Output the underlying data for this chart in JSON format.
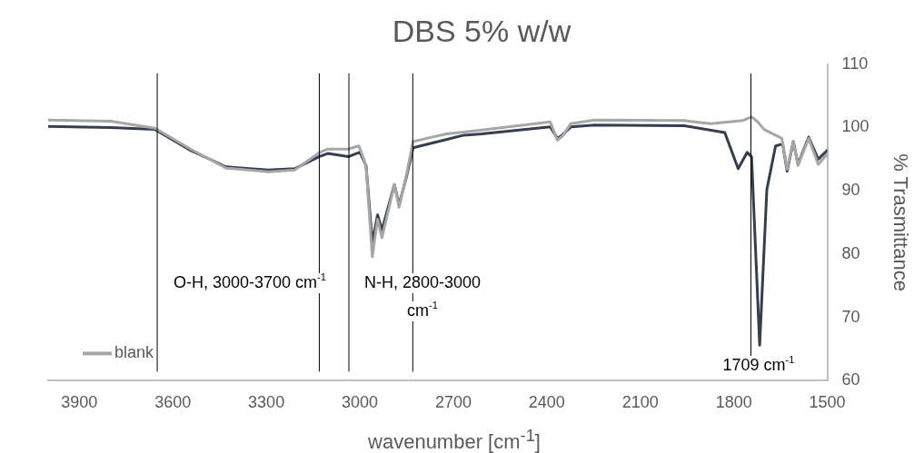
{
  "chart_data": {
    "type": "line",
    "title": "DBS 5% w/w",
    "xlabel": "wavenumber [cm$^{-1}$]",
    "ylabel": "% Trasmittance",
    "xlim": [
      4000,
      1500
    ],
    "xticks": [
      3900,
      3600,
      3300,
      3000,
      2700,
      2400,
      2100,
      1800,
      1500
    ],
    "ylim": [
      60,
      110
    ],
    "yticks": [
      60,
      70,
      80,
      90,
      100,
      110
    ],
    "grid": false,
    "legend": "bottom left",
    "marker": "none",
    "line_style": "solid",
    "series": [
      {
        "name": "blank",
        "color": "#a6a6a6",
        "x": [
          4000,
          3800,
          3657,
          3543,
          3429,
          3294,
          3209,
          3131,
          3103,
          3037,
          3003,
          2980,
          2960,
          2943,
          2929,
          2889,
          2874,
          2851,
          2829,
          2723,
          2609,
          2389,
          2366,
          2351,
          2323,
          2246,
          1960,
          1874,
          1771,
          1743,
          1723,
          1703,
          1646,
          1629,
          1609,
          1594,
          1560,
          1529,
          1500
        ],
        "values": [
          101.2,
          101.0,
          99.9,
          96.6,
          93.6,
          93.0,
          93.3,
          96.0,
          96.6,
          96.6,
          97.1,
          94.0,
          79.6,
          85.5,
          82.6,
          91.0,
          87.4,
          92.4,
          97.8,
          99.0,
          99.6,
          100.9,
          98.0,
          98.6,
          100.6,
          101.2,
          101.1,
          100.6,
          101.1,
          101.7,
          100.9,
          99.7,
          98.3,
          93.4,
          97.8,
          94.0,
          98.3,
          94.2,
          95.8
        ]
      },
      {
        "color": "#333f50",
        "x": [
          4000,
          3800,
          3657,
          3543,
          3429,
          3294,
          3209,
          3131,
          3103,
          3037,
          3000,
          2980,
          2960,
          2943,
          2929,
          2889,
          2874,
          2851,
          2829,
          2723,
          2666,
          2609,
          2389,
          2366,
          2351,
          2323,
          2246,
          1960,
          1829,
          1786,
          1757,
          1743,
          1717,
          1694,
          1666,
          1643,
          1629,
          1609,
          1594,
          1560,
          1529,
          1500
        ],
        "values": [
          100.2,
          100.0,
          99.7,
          96.4,
          93.8,
          93.3,
          93.5,
          95.4,
          95.9,
          95.4,
          96.1,
          94.0,
          81.9,
          86.2,
          83.8,
          91.0,
          87.8,
          92.1,
          96.8,
          98.1,
          98.8,
          99.0,
          100.1,
          98.3,
          98.8,
          100.1,
          100.4,
          100.3,
          99.2,
          93.5,
          96.1,
          95.4,
          65.6,
          90.2,
          97.1,
          97.4,
          93.1,
          97.8,
          94.2,
          98.5,
          95.0,
          96.4
        ]
      }
    ],
    "ref_lines": [
      {
        "axis": "x",
        "value": 3650,
        "color": "#000000"
      },
      {
        "axis": "x",
        "value": 3130,
        "color": "#000000"
      },
      {
        "axis": "x",
        "value": 3035,
        "color": "#000000"
      },
      {
        "axis": "x",
        "value": 2830,
        "color": "#000000"
      },
      {
        "axis": "x",
        "value": 1745,
        "color": "#000000"
      }
    ],
    "annotations": [
      "O-H, 3000-3700 cm$^{-1}$",
      "N-H, 2800-3000 cm$^{-1}$",
      "1709 cm$^{-1}$"
    ]
  }
}
